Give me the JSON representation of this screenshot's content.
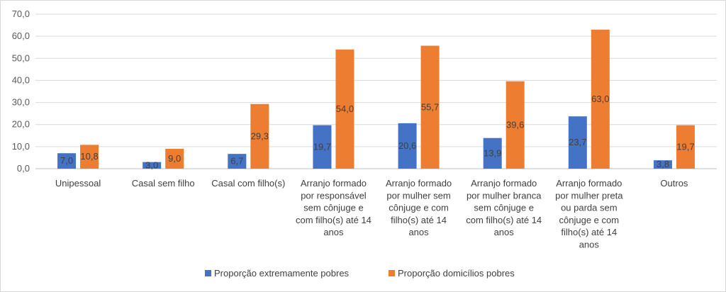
{
  "chart_data": {
    "type": "bar",
    "title": "",
    "xlabel": "",
    "ylabel": "",
    "ylim": [
      0,
      70
    ],
    "yticks": [
      "0,0",
      "10,0",
      "20,0",
      "30,0",
      "40,0",
      "50,0",
      "60,0",
      "70,0"
    ],
    "grid": true,
    "legend_position": "bottom",
    "categories": [
      [
        "Unipessoal"
      ],
      [
        "Casal sem filho"
      ],
      [
        "Casal com filho(s)"
      ],
      [
        "Arranjo formado",
        "por responsável",
        "sem cônjuge e",
        "com filho(s) até 14",
        "anos"
      ],
      [
        "Arranjo formado",
        "por mulher sem",
        "cônjuge e com",
        "filho(s) até 14",
        "anos"
      ],
      [
        "Arranjo formado",
        "por mulher branca",
        "sem cônjuge e",
        "com filho(s) até 14",
        "anos"
      ],
      [
        "Arranjo formado",
        "por mulher preta",
        "ou parda sem",
        "cônjuge e com",
        "filho(s) até 14",
        "anos"
      ],
      [
        "Outros"
      ]
    ],
    "series": [
      {
        "name": "Proporção extremamente pobres",
        "color": "#4472C4",
        "values": [
          7.0,
          3.0,
          6.7,
          19.7,
          20.6,
          13.9,
          23.7,
          3.8
        ],
        "labels": [
          "7,0",
          "3,0",
          "6,7",
          "19,7",
          "20,6",
          "13,9",
          "23,7",
          "3,8"
        ]
      },
      {
        "name": "Proporção domicílios pobres",
        "color": "#ED7D31",
        "values": [
          10.8,
          9.0,
          29.3,
          54.0,
          55.7,
          39.6,
          63.0,
          19.7
        ],
        "labels": [
          "10,8",
          "9,0",
          "29,3",
          "54,0",
          "55,7",
          "39,6",
          "63,0",
          "19,7"
        ]
      }
    ]
  }
}
